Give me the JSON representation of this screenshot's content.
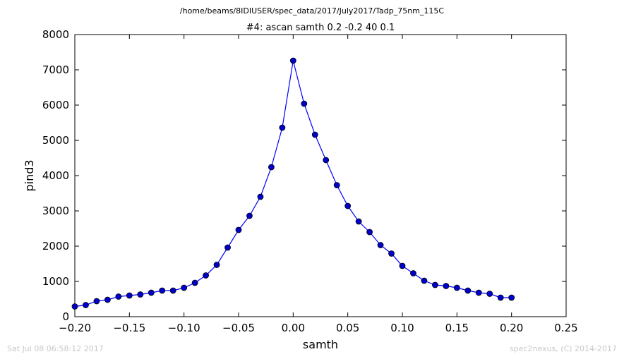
{
  "chart_data": {
    "type": "line",
    "suptitle": "/home/beams/8IDIUSER/spec_data/2017/July2017/Tadp_75nm_115C",
    "title": "#4: ascan  samth 0.2 -0.2  40 0.1",
    "xlabel": "samth",
    "ylabel": "pind3",
    "xlim": [
      -0.2,
      0.25
    ],
    "ylim": [
      0,
      8000
    ],
    "x_ticks": [
      "−0.20",
      "−0.15",
      "−0.10",
      "−0.05",
      "0.00",
      "0.05",
      "0.10",
      "0.15",
      "0.20",
      "0.25"
    ],
    "x_tick_values": [
      -0.2,
      -0.15,
      -0.1,
      -0.05,
      0.0,
      0.05,
      0.1,
      0.15,
      0.2,
      0.25
    ],
    "y_ticks": [
      "0",
      "1000",
      "2000",
      "3000",
      "4000",
      "5000",
      "6000",
      "7000",
      "8000"
    ],
    "y_tick_values": [
      0,
      1000,
      2000,
      3000,
      4000,
      5000,
      6000,
      7000,
      8000
    ],
    "grid": false,
    "series_color": "#0000ff",
    "marker_color": "#0000cc",
    "x": [
      -0.2,
      -0.19,
      -0.18,
      -0.17,
      -0.16,
      -0.15,
      -0.14,
      -0.13,
      -0.12,
      -0.11,
      -0.1,
      -0.09,
      -0.08,
      -0.07,
      -0.06,
      -0.05,
      -0.04,
      -0.03,
      -0.02,
      -0.01,
      0.0,
      0.01,
      0.02,
      0.03,
      0.04,
      0.05,
      0.06,
      0.07,
      0.08,
      0.09,
      0.1,
      0.11,
      0.12,
      0.13,
      0.14,
      0.15,
      0.16,
      0.17,
      0.18,
      0.19,
      0.2
    ],
    "y": [
      290,
      330,
      440,
      480,
      570,
      600,
      630,
      680,
      740,
      740,
      820,
      960,
      1170,
      1470,
      1960,
      2460,
      2860,
      3400,
      4240,
      5360,
      7260,
      6040,
      5160,
      4440,
      3730,
      3140,
      2700,
      2400,
      2030,
      1790,
      1440,
      1230,
      1020,
      900,
      870,
      820,
      740,
      680,
      650,
      540,
      540
    ]
  },
  "footer": {
    "left": "Sat Jul 08 06:58:12 2017",
    "right": "spec2nexus, (C) 2014-2017"
  }
}
